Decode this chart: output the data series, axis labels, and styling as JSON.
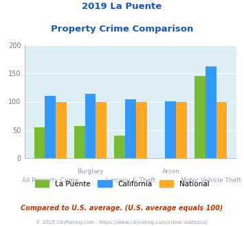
{
  "title_line1": "2019 La Puente",
  "title_line2": "Property Crime Comparison",
  "categories": [
    "All Property Crime",
    "Burglary",
    "Larceny & Theft",
    "Arson",
    "Motor Vehicle Theft"
  ],
  "x_labels_upper": [
    "",
    "Burglary",
    "",
    "Arson",
    ""
  ],
  "x_labels_lower": [
    "All Property Crime",
    "",
    "Larceny & Theft",
    "",
    "Motor Vehicle Theft"
  ],
  "la_puente": [
    55,
    57,
    40,
    0,
    145
  ],
  "california": [
    110,
    114,
    104,
    101,
    163
  ],
  "national": [
    100,
    100,
    100,
    100,
    100
  ],
  "bar_colors": {
    "la_puente": "#77bb33",
    "california": "#3399ff",
    "national": "#ffaa22"
  },
  "ylim": [
    0,
    200
  ],
  "yticks": [
    0,
    50,
    100,
    150,
    200
  ],
  "background_color": "#ddeef5",
  "title_color": "#1155cc",
  "xlabel_color": "#9999bb",
  "footer_text": "Compared to U.S. average. (U.S. average equals 100)",
  "footer_color": "#cc3300",
  "copyright_text": "© 2025 CityRating.com - https://www.cityrating.com/crime-statistics/",
  "copyright_color": "#9999bb",
  "legend_labels": [
    "La Puente",
    "California",
    "National"
  ]
}
